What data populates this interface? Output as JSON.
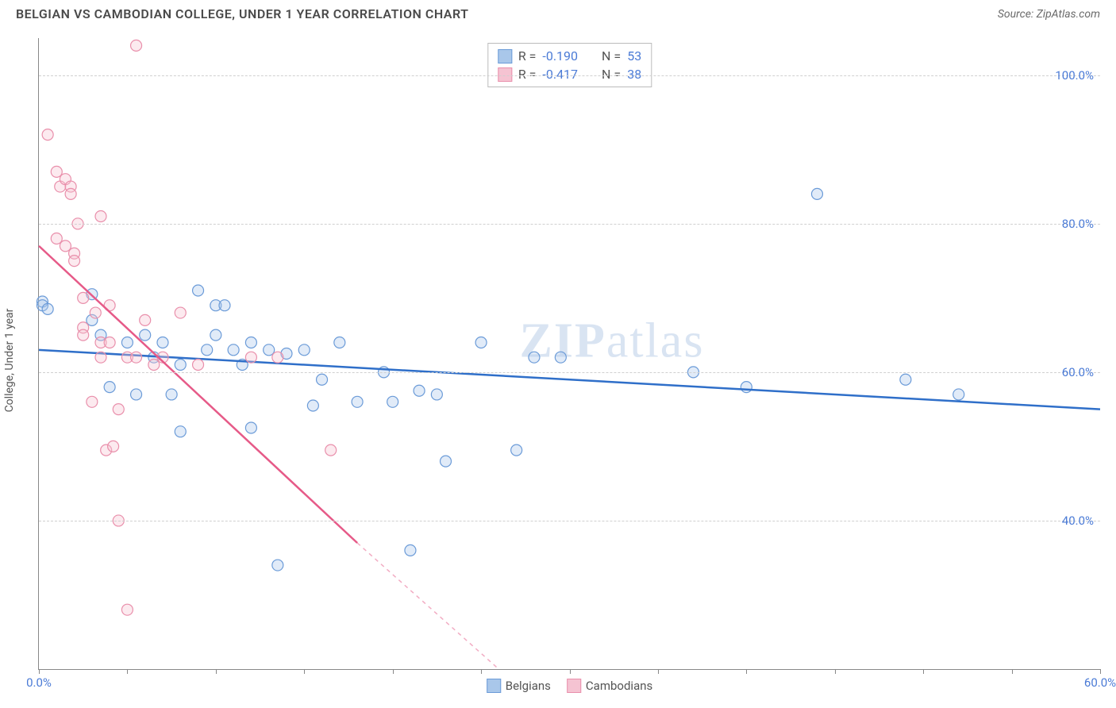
{
  "header": {
    "title": "BELGIAN VS CAMBODIAN COLLEGE, UNDER 1 YEAR CORRELATION CHART",
    "source_label": "Source:",
    "source_name": "ZipAtlas.com"
  },
  "chart": {
    "type": "scatter",
    "ylabel": "College, Under 1 year",
    "xlim": [
      0,
      60
    ],
    "ylim": [
      20,
      105
    ],
    "xtick_positions": [
      0,
      5,
      10,
      15,
      20,
      25,
      30,
      35,
      40,
      45,
      50,
      55,
      60
    ],
    "xtick_labels": {
      "0": "0.0%",
      "60": "60.0%"
    },
    "ytick_positions": [
      40,
      60,
      80,
      100
    ],
    "ytick_labels": [
      "40.0%",
      "60.0%",
      "80.0%",
      "100.0%"
    ],
    "grid_color": "#d0d0d0",
    "background_color": "#ffffff",
    "axis_color": "#888888",
    "tick_label_color": "#4b7bd6",
    "marker_radius": 7,
    "marker_stroke_width": 1.2,
    "marker_fill_opacity": 0.35,
    "line_width": 2.5,
    "watermark": "ZIPatlas",
    "series": [
      {
        "name": "Belgians",
        "color_fill": "#a9c7ea",
        "color_stroke": "#6b9bd8",
        "line_color": "#2f6fc9",
        "R": "-0.190",
        "N": "53",
        "trend": {
          "x1": 0,
          "y1": 63,
          "x2": 60,
          "y2": 55
        },
        "points": [
          [
            0.2,
            69.5
          ],
          [
            0.2,
            69
          ],
          [
            0.5,
            68.5
          ],
          [
            3,
            67
          ],
          [
            3,
            70.5
          ],
          [
            3.5,
            65
          ],
          [
            4,
            58
          ],
          [
            5,
            64
          ],
          [
            5.5,
            57
          ],
          [
            6,
            65
          ],
          [
            6.5,
            62
          ],
          [
            7,
            64
          ],
          [
            7.5,
            57
          ],
          [
            8,
            61
          ],
          [
            8,
            52
          ],
          [
            9,
            71
          ],
          [
            9.5,
            63
          ],
          [
            10,
            65
          ],
          [
            10,
            69
          ],
          [
            10.5,
            69
          ],
          [
            11,
            63
          ],
          [
            11.5,
            61
          ],
          [
            12,
            64
          ],
          [
            12,
            52.5
          ],
          [
            13,
            63
          ],
          [
            13.5,
            34
          ],
          [
            14,
            62.5
          ],
          [
            15,
            63
          ],
          [
            15.5,
            55.5
          ],
          [
            16,
            59
          ],
          [
            17,
            64
          ],
          [
            18,
            56
          ],
          [
            19.5,
            60
          ],
          [
            20,
            56
          ],
          [
            21,
            36
          ],
          [
            21.5,
            57.5
          ],
          [
            22.5,
            57
          ],
          [
            23,
            48
          ],
          [
            25,
            64
          ],
          [
            27,
            49.5
          ],
          [
            28,
            62
          ],
          [
            29.5,
            62
          ],
          [
            37,
            60
          ],
          [
            40,
            58
          ],
          [
            44,
            84
          ],
          [
            49,
            59
          ],
          [
            52,
            57
          ]
        ]
      },
      {
        "name": "Cambodians",
        "color_fill": "#f5c3d2",
        "color_stroke": "#e98fab",
        "line_color": "#e65a88",
        "R": "-0.417",
        "N": "38",
        "trend": {
          "x1": 0,
          "y1": 77,
          "x2": 26,
          "y2": 20
        },
        "trend_dash": {
          "x1": 18,
          "y1": 37,
          "x2": 26,
          "y2": 20
        },
        "points": [
          [
            0.5,
            92
          ],
          [
            1,
            87
          ],
          [
            1,
            78
          ],
          [
            1.2,
            85
          ],
          [
            1.5,
            86
          ],
          [
            1.5,
            77
          ],
          [
            1.8,
            85
          ],
          [
            1.8,
            84
          ],
          [
            2,
            76
          ],
          [
            2,
            75
          ],
          [
            2.2,
            80
          ],
          [
            2.5,
            70
          ],
          [
            2.5,
            66
          ],
          [
            2.5,
            65
          ],
          [
            3,
            56
          ],
          [
            3.2,
            68
          ],
          [
            3.5,
            81
          ],
          [
            3.5,
            64
          ],
          [
            3.5,
            62
          ],
          [
            3.8,
            49.5
          ],
          [
            4,
            69
          ],
          [
            4,
            64
          ],
          [
            4.2,
            50
          ],
          [
            4.5,
            40
          ],
          [
            4.5,
            55
          ],
          [
            5,
            62
          ],
          [
            5,
            28
          ],
          [
            5.5,
            62
          ],
          [
            5.5,
            104
          ],
          [
            6,
            67
          ],
          [
            6.5,
            61
          ],
          [
            7,
            62
          ],
          [
            8,
            68
          ],
          [
            9,
            61
          ],
          [
            12,
            62
          ],
          [
            13.5,
            62
          ],
          [
            16.5,
            49.5
          ]
        ]
      }
    ],
    "bottom_legend": [
      {
        "label": "Belgians",
        "fill": "#a9c7ea",
        "stroke": "#6b9bd8"
      },
      {
        "label": "Cambodians",
        "fill": "#f5c3d2",
        "stroke": "#e98fab"
      }
    ]
  }
}
